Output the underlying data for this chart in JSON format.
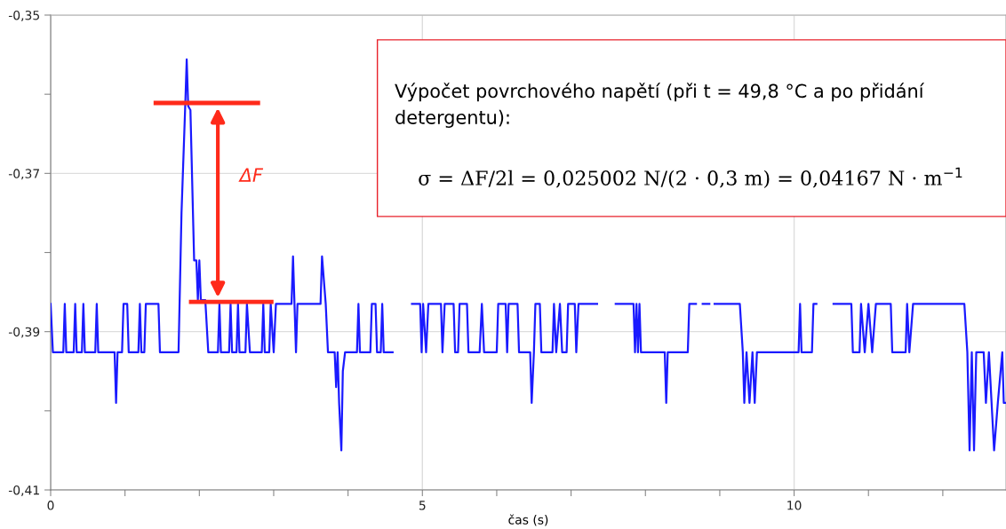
{
  "chart_data": {
    "type": "line",
    "xlabel": "čas (s)",
    "xlim": [
      0,
      12.85
    ],
    "ylim": [
      -0.41,
      -0.35
    ],
    "xticks": [
      0,
      {
        "value": 1,
        "label": null
      },
      {
        "value": 2,
        "label": null
      },
      {
        "value": 3,
        "label": null
      },
      {
        "value": 4,
        "label": null
      },
      5,
      {
        "value": 6,
        "label": null
      },
      {
        "value": 7,
        "label": null
      },
      {
        "value": 8,
        "label": null
      },
      {
        "value": 9,
        "label": null
      },
      10,
      {
        "value": 11,
        "label": null
      },
      {
        "value": 12,
        "label": null
      }
    ],
    "yticks": [
      {
        "value": -0.41,
        "label": "-0,41"
      },
      {
        "value": -0.4,
        "label": null
      },
      {
        "value": -0.39,
        "label": "-0,39"
      },
      {
        "value": -0.38,
        "label": null
      },
      {
        "value": -0.37,
        "label": "-0,37"
      },
      {
        "value": -0.36,
        "label": null
      },
      {
        "value": -0.35,
        "label": "-0,35"
      }
    ],
    "grid": true,
    "line_style": "solid",
    "marker": "none",
    "series": [
      {
        "color": "#1a1aff",
        "x": [
          0.0,
          0.03,
          0.17,
          0.19,
          0.21,
          0.31,
          0.33,
          0.35,
          0.42,
          0.44,
          0.46,
          0.6,
          0.62,
          0.64,
          0.86,
          0.88,
          0.9,
          0.96,
          0.98,
          1.03,
          1.05,
          1.18,
          1.2,
          1.22,
          1.26,
          1.28,
          1.45,
          1.47,
          1.72,
          1.76,
          1.81,
          1.83,
          1.85,
          1.88,
          1.93,
          1.96,
          1.98,
          2.0,
          2.02,
          2.08,
          2.12,
          2.25,
          2.27,
          2.29,
          2.4,
          2.42,
          2.44,
          2.5,
          2.52,
          2.54,
          2.62,
          2.64,
          2.68,
          2.84,
          2.86,
          2.88,
          2.94,
          2.96,
          3.0,
          3.03,
          3.24,
          3.26,
          3.3,
          3.32,
          3.63,
          3.65,
          3.7,
          3.73,
          3.82,
          3.84,
          3.86,
          3.88,
          3.91,
          3.93,
          3.96,
          4.12,
          4.14,
          4.16,
          4.3,
          4.32,
          4.37,
          4.39,
          4.44,
          4.46,
          4.48,
          4.6,
          4.62,
          4.86,
          4.97,
          4.99,
          5.01,
          5.05,
          5.08,
          5.25,
          5.27,
          5.3,
          5.42,
          5.44,
          5.48,
          5.5,
          5.6,
          5.62,
          5.77,
          5.8,
          5.83,
          6.0,
          6.02,
          6.12,
          6.14,
          6.16,
          6.28,
          6.3,
          6.45,
          6.47,
          6.5,
          6.52,
          6.58,
          6.6,
          6.75,
          6.77,
          6.8,
          6.85,
          6.88,
          6.94,
          6.96,
          7.05,
          7.07,
          7.1,
          7.35,
          7.37,
          7.6,
          7.84,
          7.86,
          7.88,
          7.9,
          7.92,
          7.94,
          8.26,
          8.28,
          8.3,
          8.57,
          8.59,
          8.68,
          8.7,
          8.77,
          8.86,
          8.88,
          8.93,
          9.27,
          9.31,
          9.33,
          9.36,
          9.4,
          9.44,
          9.47,
          9.5,
          10.06,
          10.08,
          10.1,
          10.24,
          10.26,
          10.3,
          10.33,
          10.53,
          10.77,
          10.79,
          10.88,
          10.9,
          10.95,
          11.0,
          11.05,
          11.1,
          11.3,
          11.32,
          11.5,
          11.52,
          11.55,
          11.6,
          12.29,
          12.33,
          12.36,
          12.39,
          12.42,
          12.45,
          12.55,
          12.58,
          12.62,
          12.69,
          12.74,
          12.8,
          12.82,
          12.84
        ],
        "values": [
          -0.3865,
          -0.3926,
          -0.3926,
          -0.3865,
          -0.3926,
          -0.3926,
          -0.3865,
          -0.3926,
          -0.3926,
          -0.3865,
          -0.3926,
          -0.3926,
          -0.3865,
          -0.3926,
          -0.3926,
          -0.399,
          -0.3926,
          -0.3926,
          -0.3865,
          -0.3865,
          -0.3926,
          -0.3926,
          -0.3865,
          -0.3926,
          -0.3926,
          -0.3865,
          -0.3865,
          -0.3926,
          -0.3926,
          -0.375,
          -0.3615,
          -0.3556,
          -0.3615,
          -0.362,
          -0.381,
          -0.381,
          -0.386,
          -0.381,
          -0.386,
          -0.386,
          -0.3926,
          -0.3926,
          -0.3865,
          -0.3926,
          -0.3926,
          -0.3865,
          -0.3926,
          -0.3926,
          -0.3865,
          -0.3926,
          -0.3926,
          -0.3865,
          -0.3926,
          -0.3926,
          -0.3865,
          -0.3926,
          -0.3926,
          -0.3865,
          -0.3926,
          -0.3865,
          -0.3865,
          -0.3805,
          -0.3926,
          -0.3865,
          -0.3865,
          -0.3805,
          -0.3865,
          -0.3926,
          -0.3926,
          -0.397,
          -0.3926,
          -0.399,
          -0.405,
          -0.395,
          -0.3926,
          -0.3926,
          -0.3865,
          -0.3926,
          -0.3926,
          -0.3865,
          -0.3865,
          -0.3926,
          -0.3926,
          -0.3865,
          -0.3926,
          -0.3926,
          null,
          -0.3865,
          -0.3865,
          -0.3926,
          -0.3865,
          -0.3926,
          -0.3865,
          -0.3865,
          -0.3926,
          -0.3865,
          -0.3865,
          -0.3926,
          -0.3926,
          -0.3865,
          -0.3865,
          -0.3926,
          -0.3926,
          -0.3865,
          -0.3926,
          -0.3926,
          -0.3865,
          -0.3865,
          -0.3926,
          -0.3865,
          -0.3865,
          -0.3926,
          -0.3926,
          -0.399,
          -0.3926,
          -0.3865,
          -0.3865,
          -0.3926,
          -0.3926,
          -0.3865,
          -0.3926,
          -0.3865,
          -0.3926,
          -0.3926,
          -0.3865,
          -0.3865,
          -0.3926,
          -0.3865,
          -0.3865,
          null,
          -0.3865,
          -0.3865,
          -0.3926,
          -0.3865,
          -0.3926,
          -0.3865,
          -0.3926,
          -0.3926,
          -0.399,
          -0.3926,
          -0.3926,
          -0.3865,
          -0.3865,
          null,
          -0.3865,
          -0.3865,
          null,
          -0.3865,
          -0.3865,
          -0.3926,
          -0.399,
          -0.3926,
          -0.399,
          -0.3926,
          -0.399,
          -0.3926,
          -0.3926,
          -0.3865,
          -0.3926,
          -0.3926,
          -0.3865,
          -0.3865,
          null,
          -0.3865,
          -0.3865,
          -0.3926,
          -0.3926,
          -0.3865,
          -0.3926,
          -0.3865,
          -0.3926,
          -0.3865,
          -0.3865,
          -0.3926,
          -0.3926,
          -0.3865,
          -0.3926,
          -0.3865,
          -0.3865,
          -0.3926,
          -0.405,
          -0.3926,
          -0.405,
          -0.3926,
          -0.3926,
          -0.399,
          -0.3926,
          -0.405,
          -0.399,
          -0.3926,
          -0.399,
          -0.399
        ]
      }
    ],
    "annotations": [
      "ΔF",
      "Výpočet povrchového napětí (při t = 49,8 °C a po přidání detergentu):",
      "σ = ΔF/2l = 0,025002 N/(2 · 0,3 m) = 0,04167 N · m$^{−1}$"
    ]
  }
}
